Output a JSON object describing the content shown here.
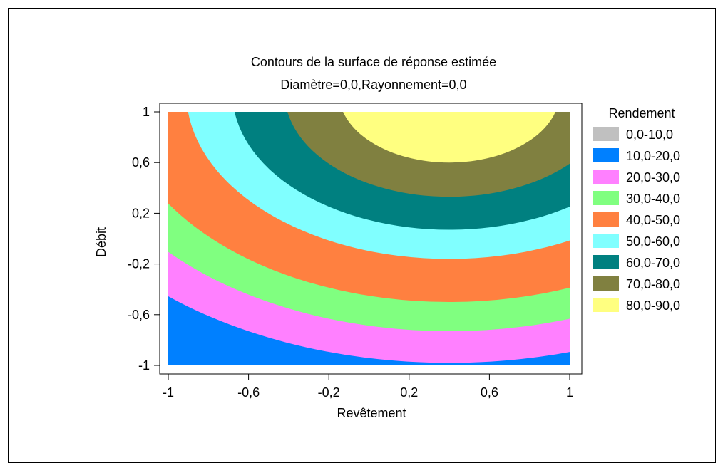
{
  "chart_data": {
    "type": "heatmap",
    "subtype": "filled-contour",
    "title": "Contours de la surface de réponse estimée",
    "subtitle": "Diamètre=0,0,Rayonnement=0,0",
    "xlabel": "Revêtement",
    "ylabel": "Débit",
    "xlim": [
      -1,
      1
    ],
    "ylim": [
      -1,
      1
    ],
    "x_ticks": [
      -1,
      -0.6,
      -0.2,
      0.2,
      0.6,
      1
    ],
    "x_tick_labels": [
      "-1",
      "-0,6",
      "-0,2",
      "0,2",
      "0,6",
      "1"
    ],
    "y_ticks": [
      1,
      0.6,
      0.2,
      -0.2,
      -0.6,
      -1
    ],
    "y_tick_labels": [
      "1",
      "0,6",
      "0,2",
      "-0,2",
      "-0,6",
      "-1"
    ],
    "grid": false,
    "legend_position": "right",
    "legend_title": "Rendement",
    "levels": [
      {
        "label": "0,0-10,0",
        "min": 0,
        "max": 10,
        "color": "#c0c0c0"
      },
      {
        "label": "10,0-20,0",
        "min": 10,
        "max": 20,
        "color": "#0080ff"
      },
      {
        "label": "20,0-30,0",
        "min": 20,
        "max": 30,
        "color": "#ff80ff"
      },
      {
        "label": "30,0-40,0",
        "min": 30,
        "max": 40,
        "color": "#80ff80"
      },
      {
        "label": "40,0-50,0",
        "min": 40,
        "max": 50,
        "color": "#ff8040"
      },
      {
        "label": "50,0-60,0",
        "min": 50,
        "max": 60,
        "color": "#80ffff"
      },
      {
        "label": "60,0-70,0",
        "min": 60,
        "max": 70,
        "color": "#008080"
      },
      {
        "label": "70,0-80,0",
        "min": 70,
        "max": 80,
        "color": "#808040"
      },
      {
        "label": "80,0-90,0",
        "min": 80,
        "max": 90,
        "color": "#ffff80"
      }
    ],
    "surface_center": {
      "x": 0.4,
      "y": 1.15
    },
    "contour_radii": [
      {
        "boundary": 80,
        "radius": 0.55
      },
      {
        "boundary": 70,
        "radius": 0.82
      },
      {
        "boundary": 60,
        "radius": 1.08
      },
      {
        "boundary": 50,
        "radius": 1.31
      },
      {
        "boundary": 40,
        "radius": 1.65
      },
      {
        "boundary": 30,
        "radius": 1.88
      },
      {
        "boundary": 20,
        "radius": 2.13
      }
    ],
    "contour_aspect_x": 1.2
  }
}
